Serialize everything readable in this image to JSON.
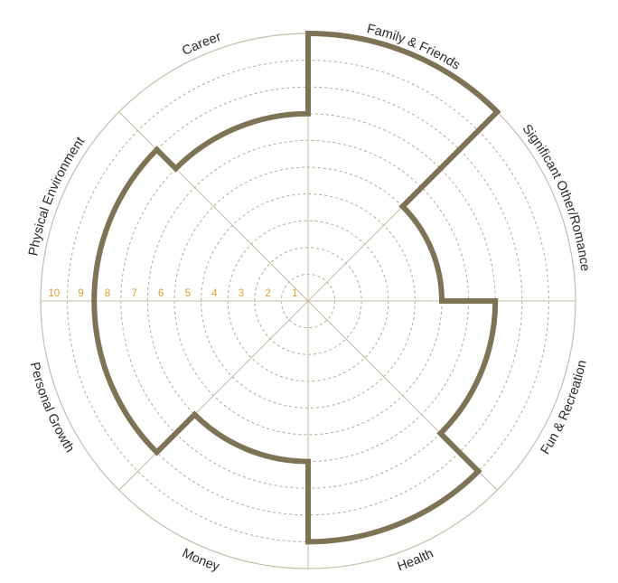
{
  "chart_data": {
    "type": "polar-area",
    "title": "",
    "scale": {
      "min": 0,
      "max": 10,
      "tick_labels": [
        "1",
        "2",
        "3",
        "4",
        "5",
        "6",
        "7",
        "8",
        "9",
        "10"
      ]
    },
    "segments": [
      {
        "label": "Family & Friends",
        "value": 10
      },
      {
        "label": "Significant Other/Romance",
        "value": 5
      },
      {
        "label": "Fun & Recreation",
        "value": 7
      },
      {
        "label": "Health",
        "value": 9
      },
      {
        "label": "Money",
        "value": 6
      },
      {
        "label": "Personal Growth",
        "value": 8
      },
      {
        "label": "Physical Environment",
        "value": 8
      },
      {
        "label": "Career",
        "value": 7
      }
    ],
    "colors": {
      "score_line": "#7f7356",
      "tick_labels": "#d9a036",
      "grid": "#b4aa92",
      "axes": "#c6bea9"
    },
    "grid": true
  }
}
